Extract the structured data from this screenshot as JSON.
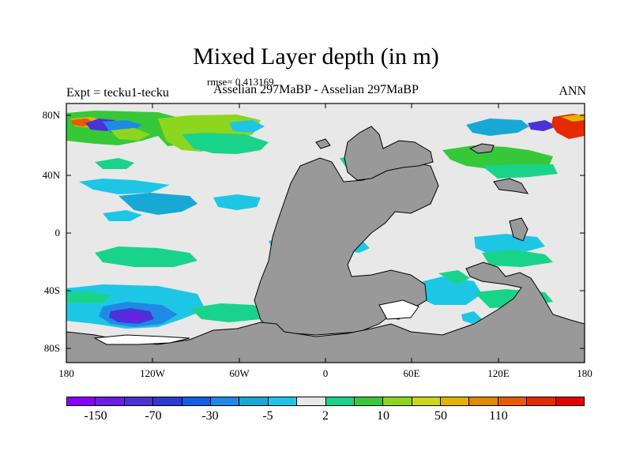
{
  "title": "Mixed Layer depth (in m)",
  "rmse_label": "rmse= 0.413169",
  "expt_label": "Expt = tecku1-tecku",
  "center_label": "Asselian 297MaBP - Asselian 297MaBP",
  "season": "ANN",
  "axes": {
    "y_ticks": [
      "80N",
      "40N",
      "0",
      "40S",
      "80S"
    ],
    "x_ticks": [
      "180",
      "120W",
      "60W",
      "0",
      "60E",
      "120E",
      "180"
    ]
  },
  "colors": {
    "land": "#999999",
    "background_field": "#e8e8e8"
  },
  "colorbar": {
    "colors": [
      "#8a00ff",
      "#6a1ee6",
      "#4b32d6",
      "#2d3ad0",
      "#0f5fe8",
      "#1f8ae6",
      "#18a8d6",
      "#1ec6e6",
      "#e8e8e8",
      "#19d38a",
      "#37c83a",
      "#8cd61e",
      "#cfd615",
      "#e0b400",
      "#e08a00",
      "#e85a00",
      "#e62a00",
      "#e60000"
    ],
    "labels": [
      "-150",
      "-70",
      "-30",
      "-5",
      "2",
      "10",
      "50",
      "110"
    ]
  }
}
